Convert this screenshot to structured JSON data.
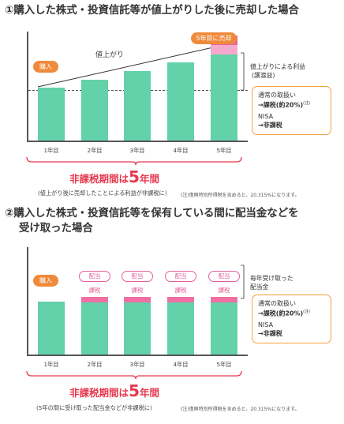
{
  "section1": {
    "heading": "①購入した株式・投資信託等が値上がりした後に売却した場合",
    "buy_tag": "購入",
    "sell_tag": "5年目に売却",
    "rise_label": "値上がり",
    "kazei_label": "課税",
    "gain_label_1": "値上がりによる利益",
    "gain_label_2": "(譲渡益)",
    "box_line1": "通常の取扱い",
    "box_line2": "→課税(約20%)",
    "box_sup": "(注)",
    "box_line3": "NISA",
    "box_line4": "→非課税",
    "period_pre": "非課税期間は",
    "period_num": "5",
    "period_post": "年間",
    "sub_note": "(値上がり後に売却したことによる利益が非課税に)",
    "foot_note": "(注)復興特別所得税を含めると、20.315%になります。"
  },
  "section2": {
    "heading_1": "②購入した株式・投資信託等を保有している間に配当金などを",
    "heading_2": "受け取った場合",
    "buy_tag": "購入",
    "haito_label": "配当",
    "kazei_label": "課税",
    "side_1": "毎年受け取った",
    "side_2": "配当金",
    "box_line1": "通常の取扱い",
    "box_line2": "→課税(約20%)",
    "box_sup": "(注)",
    "box_line3": "NISA",
    "box_line4": "→非課税",
    "period_pre": "非課税期間は",
    "period_num": "5",
    "period_post": "年間",
    "sub_note": "(5年の間に受け取った配当金などが非課税に)",
    "foot_note": "(注)復興特別所得税を含めると、20.315%になります。"
  },
  "chart_data": [
    {
      "type": "bar",
      "categories": [
        "1年目",
        "2年目",
        "3年目",
        "4年目",
        "5年目"
      ],
      "values": [
        50,
        58,
        66,
        74,
        82
      ],
      "stacked_gain": [
        0,
        0,
        0,
        0,
        18
      ],
      "ylim": [
        0,
        105
      ],
      "grid": false,
      "colors": {
        "bar": "#63d1a9",
        "gain": "#f5a9cd",
        "accent": "#ef8a3c"
      }
    },
    {
      "type": "bar",
      "categories": [
        "1年目",
        "2年目",
        "3年目",
        "4年目",
        "5年目"
      ],
      "values": [
        50,
        50,
        50,
        50,
        50
      ],
      "dividends": [
        0,
        1,
        1,
        1,
        1
      ],
      "ylim": [
        0,
        105
      ],
      "grid": false,
      "colors": {
        "bar": "#63d1a9",
        "dividend": "#ef6fa3",
        "accent": "#ef8a3c"
      }
    }
  ]
}
